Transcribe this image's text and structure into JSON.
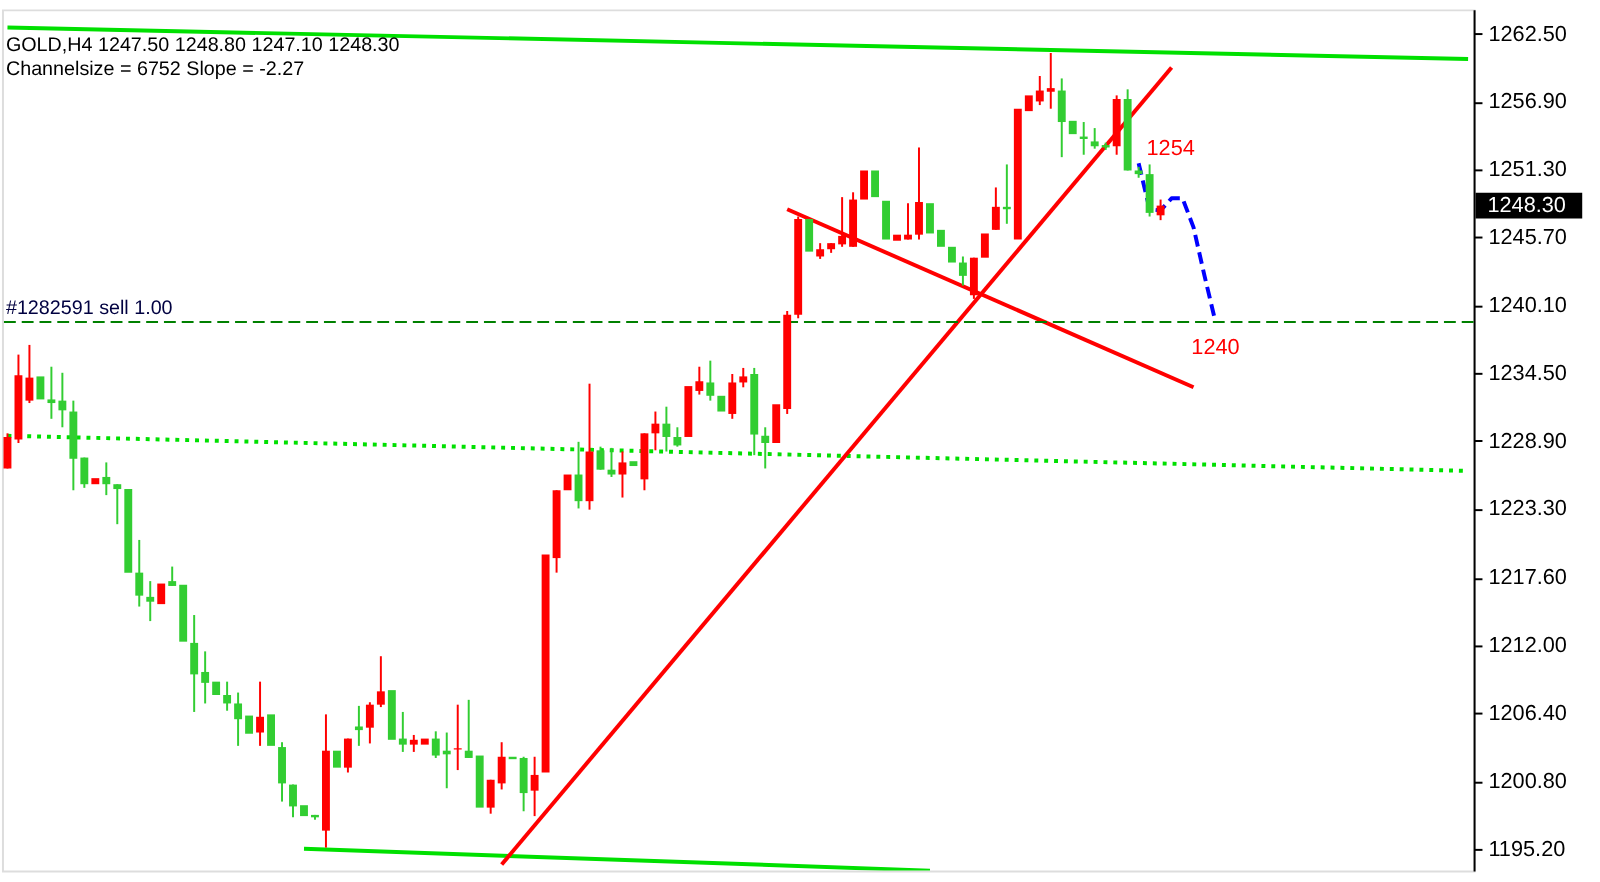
{
  "chart_data": {
    "type": "candlestick",
    "annotations": [
      "GOLD,H4  1247.50 1248.80 1247.10 1248.30",
      "Channelsize = 6752 Slope = -2.27",
      "1248.30",
      "1254",
      "1240"
    ],
    "categories": [
      null,
      null,
      null,
      null,
      null,
      null,
      null,
      null,
      null,
      null,
      null,
      null,
      null,
      null,
      null,
      null,
      null,
      null,
      null,
      null,
      null,
      null,
      null,
      null,
      null,
      null,
      null,
      null,
      null,
      null,
      null,
      null,
      null,
      null,
      null,
      null,
      null,
      null,
      null,
      null,
      null,
      null,
      null,
      null,
      null,
      null,
      null,
      null,
      null,
      null,
      null,
      null,
      null,
      null,
      null,
      null,
      null,
      null,
      null,
      null,
      null,
      null,
      null,
      null,
      null,
      null,
      null,
      null,
      null,
      null,
      null,
      null,
      null,
      null,
      null,
      null,
      null,
      null,
      null,
      null,
      null,
      null,
      null,
      null,
      null,
      null,
      null,
      null,
      null,
      null,
      null,
      null,
      null,
      null,
      null,
      null,
      null,
      null,
      null,
      null,
      null,
      null,
      null,
      null,
      null,
      null,
      null,
      null,
      null,
      null,
      null,
      null,
      null,
      null,
      null,
      null,
      null,
      null,
      null,
      null,
      null,
      null,
      null,
      null,
      null,
      null,
      null,
      null,
      null,
      null,
      null,
      null,
      null,
      null
    ],
    "ohlc": [
      [
        1226.6,
        1229.5,
        1226.6,
        1229.2
      ],
      [
        1229.0,
        1236.0,
        1228.7,
        1234.3
      ],
      [
        1232.2,
        1236.8,
        1232.0,
        1234.1
      ],
      [
        1234.2,
        1234.2,
        1232.3,
        1232.3
      ],
      [
        1232.3,
        1235.0,
        1230.7,
        1232.0
      ],
      [
        1232.2,
        1234.5,
        1230.0,
        1231.4
      ],
      [
        1231.3,
        1232.2,
        1224.8,
        1227.4
      ],
      [
        1227.5,
        1227.5,
        1225.0,
        1225.3
      ],
      [
        1225.3,
        1225.8,
        1225.3,
        1225.8
      ],
      [
        1225.9,
        1227.1,
        1224.4,
        1225.3
      ],
      [
        1225.3,
        1225.3,
        1222.0,
        1224.9
      ],
      [
        1224.9,
        1224.9,
        1218.0,
        1218.0
      ],
      [
        1218.0,
        1220.7,
        1215.2,
        1216.1
      ],
      [
        1216.0,
        1217.3,
        1214.0,
        1215.6
      ],
      [
        1215.4,
        1217.1,
        1215.4,
        1217.1
      ],
      [
        1217.3,
        1218.5,
        1216.9,
        1216.9
      ],
      [
        1217.0,
        1217.0,
        1212.3,
        1212.3
      ],
      [
        1212.2,
        1214.5,
        1206.5,
        1209.6
      ],
      [
        1209.8,
        1211.5,
        1207.2,
        1208.9
      ],
      [
        1209.0,
        1209.0,
        1207.9,
        1207.9
      ],
      [
        1207.9,
        1209.0,
        1206.6,
        1207.2
      ],
      [
        1207.2,
        1208.1,
        1203.7,
        1205.9
      ],
      [
        1206.2,
        1206.2,
        1204.7,
        1204.7
      ],
      [
        1204.8,
        1209.0,
        1203.7,
        1206.1
      ],
      [
        1206.3,
        1206.3,
        1203.7,
        1203.7
      ],
      [
        1203.6,
        1204.0,
        1199.1,
        1200.6
      ],
      [
        1200.5,
        1200.5,
        1197.8,
        1198.7
      ],
      [
        1198.8,
        1198.8,
        1197.9,
        1197.9
      ],
      [
        1198.0,
        1198.0,
        1197.6,
        1197.8
      ],
      [
        1196.7,
        1206.3,
        1195.3,
        1203.3
      ],
      [
        1203.3,
        1203.3,
        1201.9,
        1201.9
      ],
      [
        1201.9,
        1204.3,
        1201.5,
        1204.3
      ],
      [
        1205.3,
        1207.0,
        1203.7,
        1205.0
      ],
      [
        1205.2,
        1207.3,
        1203.9,
        1207.1
      ],
      [
        1207.1,
        1211.1,
        1206.9,
        1208.2
      ],
      [
        1208.3,
        1208.3,
        1204.2,
        1204.2
      ],
      [
        1204.3,
        1206.5,
        1203.2,
        1203.8
      ],
      [
        1203.8,
        1204.6,
        1203.2,
        1204.2
      ],
      [
        1203.8,
        1204.3,
        1203.8,
        1204.3
      ],
      [
        1204.3,
        1204.9,
        1202.7,
        1202.9
      ],
      [
        1203.3,
        1204.8,
        1200.2,
        1203.0
      ],
      [
        1203.4,
        1207.1,
        1201.7,
        1203.5
      ],
      [
        1203.3,
        1207.5,
        1202.7,
        1202.7
      ],
      [
        1202.9,
        1202.9,
        1198.6,
        1198.6
      ],
      [
        1198.6,
        1200.9,
        1198.1,
        1200.9
      ],
      [
        1200.6,
        1204.0,
        1200.1,
        1202.8
      ],
      [
        1202.8,
        1202.8,
        1202.6,
        1202.6
      ],
      [
        1202.7,
        1202.8,
        1198.3,
        1199.8
      ],
      [
        1200.0,
        1202.8,
        1197.9,
        1201.3
      ],
      [
        1201.5,
        1219.5,
        1201.5,
        1219.5
      ],
      [
        1219.2,
        1224.8,
        1218.0,
        1224.8
      ],
      [
        1224.8,
        1226.1,
        1224.8,
        1226.1
      ],
      [
        1226.1,
        1228.8,
        1223.3,
        1223.9
      ],
      [
        1223.9,
        1233.6,
        1223.2,
        1228.0
      ],
      [
        1228.1,
        1228.4,
        1226.5,
        1226.5
      ],
      [
        1226.5,
        1228.3,
        1225.9,
        1226.1
      ],
      [
        1226.1,
        1228.0,
        1224.2,
        1227.1
      ],
      [
        1227.2,
        1227.2,
        1226.8,
        1226.8
      ],
      [
        1225.7,
        1229.5,
        1224.8,
        1229.5
      ],
      [
        1229.5,
        1231.3,
        1228.1,
        1230.3
      ],
      [
        1230.3,
        1231.7,
        1228.0,
        1229.2
      ],
      [
        1229.2,
        1230.0,
        1228.4,
        1228.5
      ],
      [
        1229.2,
        1233.4,
        1229.2,
        1233.4
      ],
      [
        1233.0,
        1235.0,
        1232.7,
        1233.8
      ],
      [
        1233.7,
        1235.5,
        1232.2,
        1232.6
      ],
      [
        1232.6,
        1232.6,
        1231.3,
        1231.3
      ],
      [
        1231.1,
        1234.4,
        1230.7,
        1233.7
      ],
      [
        1233.7,
        1234.9,
        1233.3,
        1234.2
      ],
      [
        1234.4,
        1234.9,
        1227.7,
        1229.4
      ],
      [
        1229.3,
        1230.0,
        1226.6,
        1228.7
      ],
      [
        1228.7,
        1231.9,
        1228.7,
        1231.9
      ],
      [
        1231.5,
        1239.6,
        1231.1,
        1239.3
      ],
      [
        1239.3,
        1247.4,
        1239.0,
        1247.2
      ],
      [
        1247.2,
        1247.2,
        1244.5,
        1244.5
      ],
      [
        1244.1,
        1245.2,
        1243.9,
        1244.7
      ],
      [
        1244.7,
        1245.2,
        1244.4,
        1245.2
      ],
      [
        1245.1,
        1249.0,
        1244.9,
        1245.8
      ],
      [
        1244.9,
        1249.4,
        1244.9,
        1248.8
      ],
      [
        1248.8,
        1251.2,
        1248.8,
        1251.2
      ],
      [
        1251.2,
        1251.2,
        1249.0,
        1249.0
      ],
      [
        1248.7,
        1248.7,
        1245.5,
        1245.5
      ],
      [
        1245.4,
        1245.9,
        1245.4,
        1245.9
      ],
      [
        1245.5,
        1248.5,
        1245.5,
        1245.9
      ],
      [
        1245.9,
        1253.1,
        1245.5,
        1248.6
      ],
      [
        1248.5,
        1248.5,
        1246.0,
        1246.0
      ],
      [
        1246.3,
        1246.3,
        1244.9,
        1244.9
      ],
      [
        1244.9,
        1244.9,
        1243.6,
        1243.6
      ],
      [
        1243.6,
        1244.1,
        1241.7,
        1242.5
      ],
      [
        1240.9,
        1244.0,
        1240.6,
        1244.0
      ],
      [
        1244.0,
        1246.0,
        1244.0,
        1246.0
      ],
      [
        1246.3,
        1249.8,
        1246.3,
        1248.2
      ],
      [
        1248.2,
        1251.7,
        1246.8,
        1248.0
      ],
      [
        1245.5,
        1256.3,
        1245.5,
        1256.3
      ],
      [
        1256.1,
        1257.4,
        1256.1,
        1257.4
      ],
      [
        1256.9,
        1259.0,
        1256.6,
        1257.8
      ],
      [
        1257.7,
        1260.9,
        1256.3,
        1258.0
      ],
      [
        1257.8,
        1258.8,
        1252.3,
        1255.2
      ],
      [
        1255.3,
        1255.3,
        1254.2,
        1254.2
      ],
      [
        1254.0,
        1255.2,
        1252.5,
        1253.8
      ],
      [
        1253.6,
        1254.7,
        1253.0,
        1253.2
      ],
      [
        1253.3,
        1253.5,
        1252.9,
        1253.1
      ],
      [
        1253.2,
        1257.4,
        1252.5,
        1257.1
      ],
      [
        1257.1,
        1257.9,
        1251.2,
        1251.2
      ],
      [
        1251.2,
        1251.5,
        1250.6,
        1250.9
      ],
      [
        1250.9,
        1251.7,
        1247.4,
        1247.7
      ],
      [
        1247.5,
        1248.8,
        1247.1,
        1248.3
      ],
      null,
      null,
      null,
      null,
      null,
      null,
      null,
      null,
      null,
      null,
      null,
      null,
      null,
      null,
      null,
      null,
      null,
      null,
      null,
      null,
      null,
      null,
      null,
      null,
      null,
      null,
      null,
      null
    ],
    "colors": [
      "#ff0000",
      "#ff0000",
      "#ff0000",
      "#32cd32",
      "#32cd32",
      "#32cd32",
      "#32cd32",
      "#32cd32",
      "#ff0000",
      "#32cd32",
      "#32cd32",
      "#32cd32",
      "#32cd32",
      "#32cd32",
      "#ff0000",
      "#32cd32",
      "#32cd32",
      "#32cd32",
      "#32cd32",
      "#32cd32",
      "#32cd32",
      "#32cd32",
      "#32cd32",
      "#ff0000",
      "#32cd32",
      "#32cd32",
      "#32cd32",
      "#32cd32",
      "#32cd32",
      "#ff0000",
      "#32cd32",
      "#ff0000",
      "#32cd32",
      "#ff0000",
      "#ff0000",
      "#32cd32",
      "#32cd32",
      "#ff0000",
      "#ff0000",
      "#32cd32",
      "#32cd32",
      "#ff0000",
      "#32cd32",
      "#32cd32",
      "#ff0000",
      "#ff0000",
      "#32cd32",
      "#32cd32",
      "#ff0000",
      "#ff0000",
      "#ff0000",
      "#ff0000",
      "#32cd32",
      "#ff0000",
      "#32cd32",
      "#32cd32",
      "#ff0000",
      "#32cd32",
      "#ff0000",
      "#ff0000",
      "#32cd32",
      "#32cd32",
      "#ff0000",
      "#ff0000",
      "#32cd32",
      "#32cd32",
      "#ff0000",
      "#ff0000",
      "#32cd32",
      "#32cd32",
      "#ff0000",
      "#ff0000",
      "#ff0000",
      "#32cd32",
      "#ff0000",
      "#ff0000",
      "#ff0000",
      "#ff0000",
      "#ff0000",
      "#32cd32",
      "#32cd32",
      "#ff0000",
      "#ff0000",
      "#ff0000",
      "#32cd32",
      "#32cd32",
      "#32cd32",
      "#32cd32",
      "#ff0000",
      "#ff0000",
      "#ff0000",
      "#32cd32",
      "#ff0000",
      "#ff0000",
      "#ff0000",
      "#ff0000",
      "#32cd32",
      "#32cd32",
      "#32cd32",
      "#32cd32",
      "#32cd32",
      "#ff0000",
      "#32cd32",
      "#32cd32",
      "#32cd32",
      "#ff0000",
      null,
      null,
      null,
      null,
      null,
      null,
      null,
      null,
      null,
      null,
      null,
      null,
      null,
      null,
      null,
      null,
      null,
      null,
      null,
      null,
      null,
      null,
      null,
      null,
      null,
      null,
      null,
      null
    ],
    "series": [
      {
        "type": "line",
        "color": "#00e000",
        "line_style": "solid",
        "values": [
          1263.0,
          null,
          null,
          null,
          null,
          null,
          null,
          null,
          null,
          null,
          null,
          null,
          null,
          null,
          null,
          null,
          null,
          null,
          null,
          null,
          null,
          null,
          null,
          null,
          null,
          null,
          null,
          null,
          null,
          null,
          null,
          null,
          null,
          null,
          null,
          null,
          null,
          null,
          null,
          null,
          null,
          null,
          null,
          null,
          null,
          null,
          null,
          null,
          null,
          null,
          null,
          null,
          null,
          null,
          null,
          null,
          null,
          null,
          null,
          null,
          null,
          null,
          null,
          null,
          null,
          null,
          null,
          null,
          null,
          null,
          null,
          null,
          null,
          null,
          null,
          null,
          null,
          null,
          null,
          null,
          null,
          null,
          null,
          null,
          null,
          null,
          null,
          null,
          null,
          null,
          null,
          null,
          null,
          null,
          null,
          null,
          null,
          null,
          null,
          null,
          null,
          null,
          null,
          null,
          null,
          null,
          null,
          null,
          null,
          null,
          null,
          null,
          null,
          null,
          null,
          null,
          null,
          null,
          null,
          null,
          null,
          null,
          null,
          null,
          null,
          null,
          null,
          null,
          null,
          null,
          null,
          null,
          null,
          1260.4
        ]
      },
      {
        "type": "line",
        "color": "#00e000",
        "line_style": "solid",
        "values": [
          null,
          null,
          null,
          null,
          null,
          null,
          null,
          null,
          null,
          null,
          null,
          null,
          null,
          null,
          null,
          null,
          null,
          null,
          null,
          null,
          null,
          null,
          null,
          null,
          null,
          null,
          null,
          1195.2,
          null,
          null,
          null,
          null,
          null,
          null,
          null,
          null,
          null,
          null,
          null,
          null,
          null,
          null,
          null,
          null,
          null,
          null,
          null,
          null,
          null,
          null,
          null,
          null,
          null,
          null,
          null,
          null,
          null,
          null,
          null,
          null,
          null,
          null,
          null,
          null,
          null,
          null,
          null,
          null,
          null,
          null,
          null,
          null,
          null,
          null,
          null,
          null,
          null,
          null,
          null,
          null,
          null,
          null,
          null,
          null,
          1193.4,
          null,
          null,
          null,
          null,
          null,
          null,
          null,
          null,
          null,
          null,
          null,
          null,
          null,
          null,
          null,
          null,
          null,
          null,
          null,
          null,
          null,
          null,
          null,
          null,
          null,
          null,
          null,
          null,
          null,
          null,
          null,
          null,
          null,
          null,
          null,
          null,
          null,
          null,
          null,
          null,
          null,
          null,
          null,
          null,
          null,
          null,
          null,
          null,
          null
        ]
      },
      {
        "type": "line",
        "color": "#00e000",
        "line_style": "dotted",
        "values": [
          1229.3,
          null,
          null,
          null,
          null,
          null,
          null,
          null,
          null,
          null,
          null,
          null,
          null,
          null,
          null,
          null,
          null,
          null,
          null,
          null,
          null,
          null,
          null,
          null,
          null,
          null,
          null,
          null,
          null,
          null,
          null,
          null,
          null,
          null,
          null,
          null,
          null,
          null,
          null,
          null,
          null,
          null,
          null,
          null,
          null,
          null,
          null,
          null,
          null,
          null,
          null,
          null,
          null,
          null,
          null,
          null,
          null,
          null,
          null,
          null,
          null,
          null,
          null,
          null,
          null,
          null,
          null,
          null,
          null,
          null,
          null,
          null,
          null,
          null,
          null,
          null,
          null,
          null,
          null,
          null,
          null,
          null,
          null,
          null,
          null,
          null,
          null,
          null,
          null,
          null,
          null,
          null,
          null,
          null,
          null,
          null,
          null,
          null,
          null,
          null,
          null,
          null,
          null,
          null,
          null,
          null,
          null,
          null,
          null,
          null,
          null,
          null,
          null,
          null,
          null,
          null,
          null,
          null,
          null,
          null,
          null,
          null,
          null,
          null,
          null,
          null,
          null,
          null,
          null,
          null,
          null,
          null,
          null,
          1226.4
        ]
      },
      {
        "type": "line",
        "color": "#ff0000",
        "line_style": "solid",
        "values": [
          null,
          null,
          null,
          null,
          null,
          null,
          null,
          null,
          null,
          null,
          null,
          null,
          null,
          null,
          null,
          null,
          null,
          null,
          null,
          null,
          null,
          null,
          null,
          null,
          null,
          null,
          null,
          null,
          null,
          null,
          null,
          null,
          null,
          null,
          null,
          null,
          null,
          null,
          null,
          null,
          null,
          null,
          null,
          null,
          null,
          1193.9,
          null,
          null,
          null,
          null,
          null,
          null,
          null,
          null,
          null,
          null,
          null,
          null,
          null,
          null,
          null,
          null,
          null,
          null,
          null,
          null,
          null,
          null,
          null,
          null,
          null,
          null,
          null,
          null,
          null,
          null,
          null,
          null,
          null,
          null,
          null,
          null,
          null,
          null,
          null,
          null,
          null,
          null,
          null,
          null,
          null,
          null,
          null,
          null,
          null,
          null,
          null,
          null,
          null,
          null,
          null,
          null,
          null,
          null,
          null,
          null,
          1259.7,
          null,
          null,
          null,
          null,
          null,
          null,
          null,
          null,
          null,
          null,
          null,
          null,
          null,
          null,
          null,
          null,
          null,
          null,
          null,
          null,
          null,
          null,
          null,
          null,
          null,
          null,
          null
        ]
      },
      {
        "type": "line",
        "color": "#ff0000",
        "line_style": "solid",
        "values": [
          null,
          null,
          null,
          null,
          null,
          null,
          null,
          null,
          null,
          null,
          null,
          null,
          null,
          null,
          null,
          null,
          null,
          null,
          null,
          null,
          null,
          null,
          null,
          null,
          null,
          null,
          null,
          null,
          null,
          null,
          null,
          null,
          null,
          null,
          null,
          null,
          null,
          null,
          null,
          null,
          null,
          null,
          null,
          null,
          null,
          null,
          null,
          null,
          null,
          null,
          null,
          null,
          null,
          null,
          null,
          null,
          null,
          null,
          null,
          null,
          null,
          null,
          null,
          null,
          null,
          null,
          null,
          null,
          null,
          null,
          null,
          1248.0,
          null,
          null,
          null,
          null,
          null,
          null,
          null,
          null,
          null,
          null,
          null,
          null,
          null,
          null,
          null,
          null,
          null,
          null,
          null,
          null,
          null,
          null,
          null,
          null,
          null,
          null,
          null,
          null,
          null,
          null,
          null,
          null,
          null,
          null,
          null,
          null,
          1233.3,
          null,
          null,
          null,
          null,
          null,
          null,
          null,
          null,
          null,
          null,
          null,
          null,
          null,
          null,
          null,
          null,
          null,
          null,
          null,
          null,
          null,
          null,
          null,
          null,
          null
        ]
      },
      {
        "type": "line",
        "color": "#0000ff",
        "line_style": "dashed",
        "values": [
          null,
          null,
          null,
          null,
          null,
          null,
          null,
          null,
          null,
          null,
          null,
          null,
          null,
          null,
          null,
          null,
          null,
          null,
          null,
          null,
          null,
          null,
          null,
          null,
          null,
          null,
          null,
          null,
          null,
          null,
          null,
          null,
          null,
          null,
          null,
          null,
          null,
          null,
          null,
          null,
          null,
          null,
          null,
          null,
          null,
          null,
          null,
          null,
          null,
          null,
          null,
          null,
          null,
          null,
          null,
          null,
          null,
          null,
          null,
          null,
          null,
          null,
          null,
          null,
          null,
          null,
          null,
          null,
          null,
          null,
          null,
          null,
          null,
          null,
          null,
          null,
          null,
          null,
          null,
          null,
          null,
          null,
          null,
          null,
          null,
          null,
          null,
          null,
          null,
          null,
          null,
          null,
          null,
          null,
          null,
          null,
          null,
          null,
          null,
          null,
          null,
          null,
          null,
          1251.8,
          1248.0,
          1247.9,
          1248.9,
          1248.9,
          1246.5,
          1242.5,
          1238.7,
          null,
          null,
          null,
          null,
          null,
          null,
          null,
          null,
          null,
          null,
          null,
          null,
          null,
          null,
          null,
          null,
          null,
          null,
          null,
          null,
          null,
          null,
          null
        ]
      }
    ],
    "ref_lines": [
      {
        "axis": "y",
        "value": 1238.7,
        "label": "#1282591 sell 1.00",
        "color": "#008000",
        "line_style": "dashed"
      }
    ],
    "ylim": [
      1193.4,
      1264.5
    ],
    "yticks": [
      {
        "value": 1262.5,
        "label": "1262.50"
      },
      {
        "value": 1256.9,
        "label": "1256.90"
      },
      {
        "value": 1251.3,
        "label": "1251.30"
      },
      {
        "value": 1245.7,
        "label": "1245.70"
      },
      {
        "value": 1240.1,
        "label": "1240.10"
      },
      {
        "value": 1234.5,
        "label": "1234.50"
      },
      {
        "value": 1228.9,
        "label": "1228.90"
      },
      {
        "value": 1223.3,
        "label": "1223.30"
      },
      {
        "value": 1217.6,
        "label": "1217.60"
      },
      {
        "value": 1212.0,
        "label": "1212.00"
      },
      {
        "value": 1206.4,
        "label": "1206.40"
      },
      {
        "value": 1200.8,
        "label": "1200.80"
      },
      {
        "value": 1195.2,
        "label": "1195.20"
      }
    ],
    "tick_labels": "y",
    "grid": false
  }
}
